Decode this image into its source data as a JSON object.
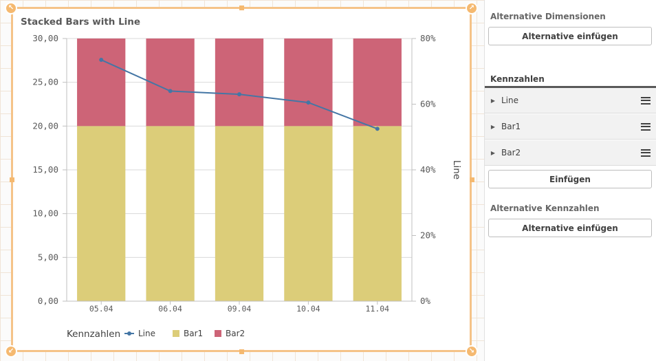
{
  "chart": {
    "title": "Stacked Bars with Line",
    "legend_title": "Kennzahlen",
    "right_axis_label": "Line"
  },
  "chart_data": {
    "type": "bar",
    "title": "Stacked Bars with Line",
    "categories": [
      "05.04",
      "06.04",
      "09.04",
      "10.04",
      "11.04"
    ],
    "ylim": [
      0,
      30
    ],
    "yticks": [
      "0,00",
      "5,00",
      "10,00",
      "15,00",
      "20,00",
      "25,00",
      "30,00"
    ],
    "ylim_right": [
      0,
      80
    ],
    "yticks_right": [
      "0%",
      "20%",
      "40%",
      "60%",
      "80%"
    ],
    "ylabel_right": "Line",
    "grid": true,
    "legend_position": "bottom-left",
    "series": [
      {
        "name": "Bar1",
        "type": "bar",
        "stacked": true,
        "color": "#dccd79",
        "values": [
          20,
          20,
          20,
          20,
          20
        ]
      },
      {
        "name": "Bar2",
        "type": "bar",
        "stacked": true,
        "color": "#cd6477",
        "values": [
          10,
          10,
          10,
          10,
          10
        ]
      },
      {
        "name": "Line",
        "type": "line",
        "axis": "right",
        "color": "#4476a5",
        "values": [
          73.5,
          64,
          63,
          60.5,
          52.5
        ]
      }
    ]
  },
  "panel": {
    "alt_dimensions_heading": "Alternative Dimensionen",
    "alt_dimensions_button": "Alternative einfügen",
    "measures_heading": "Kennzahlen",
    "measures": [
      {
        "label": "Line",
        "icon": "chevron-right-icon"
      },
      {
        "label": "Bar1",
        "icon": "chevron-right-icon"
      },
      {
        "label": "Bar2",
        "icon": "chevron-right-icon"
      }
    ],
    "insert_button": "Einfügen",
    "alt_measures_heading": "Alternative Kennzahlen",
    "alt_measures_button": "Alternative einfügen"
  },
  "colors": {
    "selection_accent": "#f5b970",
    "bar1": "#dccd79",
    "bar2": "#cd6477",
    "line": "#4476a5"
  }
}
